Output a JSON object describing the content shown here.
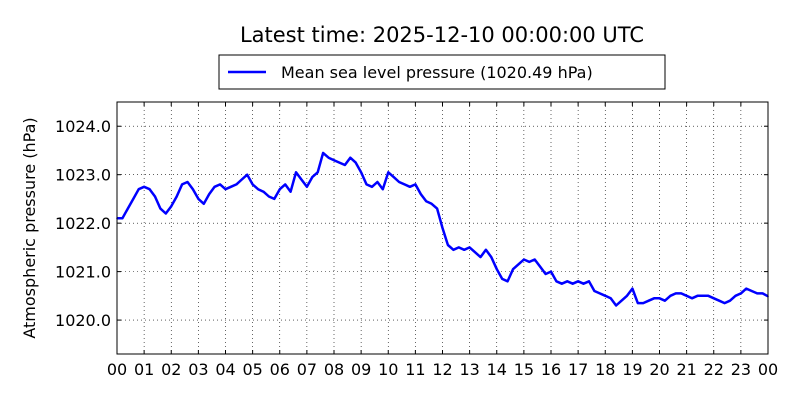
{
  "chart_data": {
    "type": "line",
    "title": "Latest time: 2025-12-10 00:00:00 UTC",
    "ylabel": "Atmospheric pressure (hPa)",
    "xlabel": "",
    "xlim": [
      0,
      24
    ],
    "ylim": [
      1019.3,
      1024.5
    ],
    "grid": true,
    "legend_position": "top-center",
    "x_ticks": [
      "00",
      "01",
      "02",
      "03",
      "04",
      "05",
      "06",
      "07",
      "08",
      "09",
      "10",
      "11",
      "12",
      "13",
      "14",
      "15",
      "16",
      "17",
      "18",
      "19",
      "20",
      "21",
      "22",
      "23",
      "00"
    ],
    "y_ticks": [
      "1020.0",
      "1021.0",
      "1022.0",
      "1023.0",
      "1024.0"
    ],
    "series": [
      {
        "name": "Mean sea level pressure (1020.49 hPa)",
        "color": "#0000ff",
        "x": [
          0,
          0.2,
          0.4,
          0.6,
          0.8,
          1.0,
          1.2,
          1.4,
          1.6,
          1.8,
          2.0,
          2.2,
          2.4,
          2.6,
          2.8,
          3.0,
          3.2,
          3.4,
          3.6,
          3.8,
          4.0,
          4.2,
          4.4,
          4.6,
          4.8,
          5.0,
          5.2,
          5.4,
          5.6,
          5.8,
          6.0,
          6.2,
          6.4,
          6.6,
          6.8,
          7.0,
          7.2,
          7.4,
          7.6,
          7.8,
          8.0,
          8.2,
          8.4,
          8.6,
          8.8,
          9.0,
          9.2,
          9.4,
          9.6,
          9.8,
          10.0,
          10.2,
          10.4,
          10.6,
          10.8,
          11.0,
          11.2,
          11.4,
          11.6,
          11.8,
          12.0,
          12.2,
          12.4,
          12.6,
          12.8,
          13.0,
          13.2,
          13.4,
          13.6,
          13.8,
          14.0,
          14.2,
          14.4,
          14.6,
          14.8,
          15.0,
          15.2,
          15.4,
          15.6,
          15.8,
          16.0,
          16.2,
          16.4,
          16.6,
          16.8,
          17.0,
          17.2,
          17.4,
          17.6,
          17.8,
          18.0,
          18.2,
          18.4,
          18.6,
          18.8,
          19.0,
          19.2,
          19.4,
          19.6,
          19.8,
          20.0,
          20.2,
          20.4,
          20.6,
          20.8,
          21.0,
          21.2,
          21.4,
          21.6,
          21.8,
          22.0,
          22.2,
          22.4,
          22.6,
          22.8,
          23.0,
          23.2,
          23.4,
          23.6,
          23.8,
          24.0
        ],
        "y": [
          1022.1,
          1022.1,
          1022.3,
          1022.5,
          1022.7,
          1022.75,
          1022.7,
          1022.55,
          1022.3,
          1022.2,
          1022.35,
          1022.55,
          1022.8,
          1022.85,
          1022.7,
          1022.5,
          1022.4,
          1022.6,
          1022.75,
          1022.8,
          1022.7,
          1022.75,
          1022.8,
          1022.9,
          1023.0,
          1022.8,
          1022.7,
          1022.65,
          1022.55,
          1022.5,
          1022.7,
          1022.8,
          1022.65,
          1023.05,
          1022.9,
          1022.75,
          1022.95,
          1023.05,
          1023.45,
          1023.35,
          1023.3,
          1023.25,
          1023.2,
          1023.35,
          1023.25,
          1023.05,
          1022.8,
          1022.75,
          1022.85,
          1022.7,
          1023.05,
          1022.95,
          1022.85,
          1022.8,
          1022.75,
          1022.8,
          1022.6,
          1022.45,
          1022.4,
          1022.3,
          1021.9,
          1021.55,
          1021.45,
          1021.5,
          1021.45,
          1021.5,
          1021.4,
          1021.3,
          1021.45,
          1021.3,
          1021.05,
          1020.85,
          1020.8,
          1021.05,
          1021.15,
          1021.25,
          1021.2,
          1021.25,
          1021.1,
          1020.95,
          1021.0,
          1020.8,
          1020.75,
          1020.8,
          1020.75,
          1020.8,
          1020.75,
          1020.8,
          1020.6,
          1020.55,
          1020.5,
          1020.45,
          1020.3,
          1020.4,
          1020.5,
          1020.65,
          1020.35,
          1020.35,
          1020.4,
          1020.45,
          1020.45,
          1020.4,
          1020.5,
          1020.55,
          1020.55,
          1020.5,
          1020.45,
          1020.5,
          1020.5,
          1020.5,
          1020.45,
          1020.4,
          1020.35,
          1020.4,
          1020.5,
          1020.55,
          1020.65,
          1020.6,
          1020.55,
          1020.55,
          1020.49
        ]
      }
    ]
  }
}
